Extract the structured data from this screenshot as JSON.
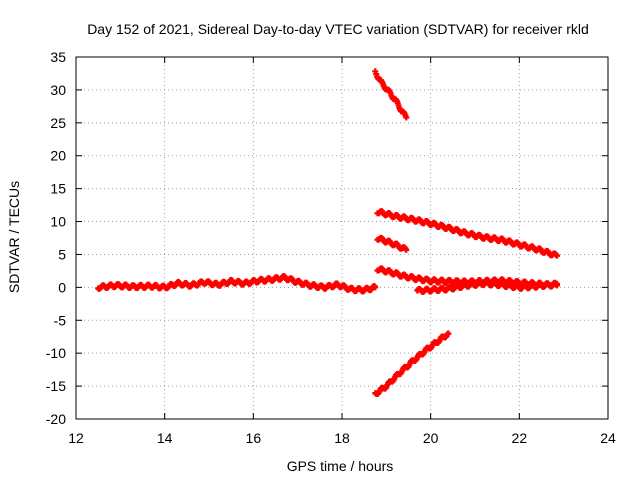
{
  "chart_data": {
    "type": "scatter",
    "title": "Day 152 of 2021, Sidereal Day-to-day VTEC variation (SDTVAR) for receiver rkld",
    "xlabel": "GPS time / hours",
    "ylabel": "SDTVAR / TECUs",
    "xlim": [
      12,
      24
    ],
    "ylim": [
      -20,
      35
    ],
    "xticks": [
      12,
      14,
      16,
      18,
      20,
      22,
      24
    ],
    "yticks": [
      -20,
      -15,
      -10,
      -5,
      0,
      5,
      10,
      15,
      20,
      25,
      30,
      35
    ],
    "grid": true,
    "marker_color": "#ff0000",
    "series": [
      {
        "name": "arc-main",
        "x": [
          12.5,
          12.9,
          13.3,
          13.7,
          14.0,
          14.3,
          14.6,
          14.9,
          15.2,
          15.5,
          15.8,
          16.1,
          16.4,
          16.7,
          17.0,
          17.3,
          17.6,
          17.9,
          18.2,
          18.5,
          18.75
        ],
        "y": [
          0.0,
          0.3,
          0.1,
          0.2,
          0.0,
          0.6,
          0.3,
          0.8,
          0.4,
          0.9,
          0.6,
          1.0,
          1.2,
          1.5,
          0.8,
          0.3,
          0.0,
          0.4,
          -0.3,
          -0.4,
          0.0
        ]
      },
      {
        "name": "arc-descend",
        "x": [
          18.75,
          18.9,
          19.05,
          19.2,
          19.35,
          19.45
        ],
        "y": [
          32.7,
          31.0,
          29.8,
          28.5,
          26.8,
          25.8
        ]
      },
      {
        "name": "arc-upper",
        "x": [
          18.8,
          19.2,
          19.6,
          20.0,
          20.4,
          20.8,
          21.2,
          21.6,
          22.0,
          22.4,
          22.85
        ],
        "y": [
          11.5,
          10.8,
          10.3,
          9.7,
          9.0,
          8.2,
          7.6,
          7.2,
          6.5,
          5.8,
          4.8
        ]
      },
      {
        "name": "arc-short",
        "x": [
          18.8,
          19.0,
          19.2,
          19.45
        ],
        "y": [
          7.5,
          7.0,
          6.5,
          5.7
        ]
      },
      {
        "name": "arc-mid",
        "x": [
          18.8,
          19.1,
          19.4,
          19.7,
          20.0,
          20.4,
          20.8,
          21.2,
          21.6,
          22.0,
          22.4,
          22.85
        ],
        "y": [
          2.8,
          2.3,
          1.7,
          1.3,
          1.0,
          0.9,
          0.8,
          0.9,
          1.0,
          0.7,
          0.5,
          0.3
        ]
      },
      {
        "name": "arc-low",
        "x": [
          19.7,
          20.0,
          20.4,
          20.8,
          21.2,
          21.6,
          22.0,
          22.4,
          22.85
        ],
        "y": [
          -0.5,
          -0.4,
          -0.2,
          0.3,
          0.6,
          0.4,
          0.0,
          0.2,
          0.5
        ]
      },
      {
        "name": "arc-rise",
        "x": [
          18.75,
          19.0,
          19.3,
          19.6,
          19.9,
          20.2,
          20.4
        ],
        "y": [
          -16.2,
          -15.0,
          -13.0,
          -11.2,
          -9.5,
          -8.0,
          -7.0
        ]
      }
    ]
  }
}
